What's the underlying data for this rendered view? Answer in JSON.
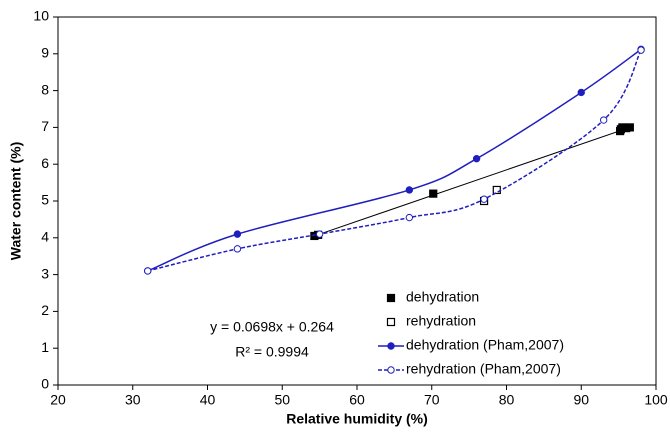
{
  "chart_data": {
    "type": "scatter",
    "x_label": "Relative humidity (%)",
    "y_label": "Water content (%)",
    "xlim": [
      20,
      100
    ],
    "xticks": [
      20,
      30,
      40,
      50,
      60,
      70,
      80,
      90,
      100
    ],
    "ylim": [
      0,
      10
    ],
    "yticks": [
      0,
      1,
      2,
      3,
      4,
      5,
      6,
      7,
      8,
      9,
      10
    ],
    "grid": false,
    "legend": "lower right",
    "annotations": [
      "y = 0.0698x + 0.264",
      "R² = 0.9994"
    ],
    "trendline": {
      "color": "#000000",
      "x": [
        54.3,
        96.5
      ],
      "values": [
        4.05,
        7.0
      ]
    },
    "series": [
      {
        "name": "dehydration",
        "color": "#000000",
        "marker": "square",
        "line": "none",
        "x": [
          54.3,
          54.8,
          70.2,
          95.2,
          95.3,
          95.5,
          96.0,
          96.5
        ],
        "values": [
          4.05,
          4.08,
          5.2,
          6.9,
          6.95,
          7.0,
          6.98,
          7.0
        ]
      },
      {
        "name": "rehydration",
        "color": "#000000",
        "marker": "square-open",
        "line": "none",
        "x": [
          77.0,
          78.7
        ],
        "values": [
          5.0,
          5.3
        ]
      },
      {
        "name": "dehydration (Pham,2007)",
        "color": "#1f1fbf",
        "marker": "circle",
        "line": "solid",
        "x": [
          32,
          44,
          67,
          76,
          90,
          98
        ],
        "values": [
          3.1,
          4.1,
          5.3,
          6.15,
          7.95,
          9.12
        ]
      },
      {
        "name": "rehydration (Pham,2007)",
        "color": "#1f1fbf",
        "marker": "circle-open",
        "line": "dashed",
        "x": [
          32,
          44,
          55,
          67,
          77,
          93,
          98
        ],
        "values": [
          3.1,
          3.7,
          4.1,
          4.55,
          5.05,
          7.2,
          9.1
        ]
      }
    ]
  }
}
